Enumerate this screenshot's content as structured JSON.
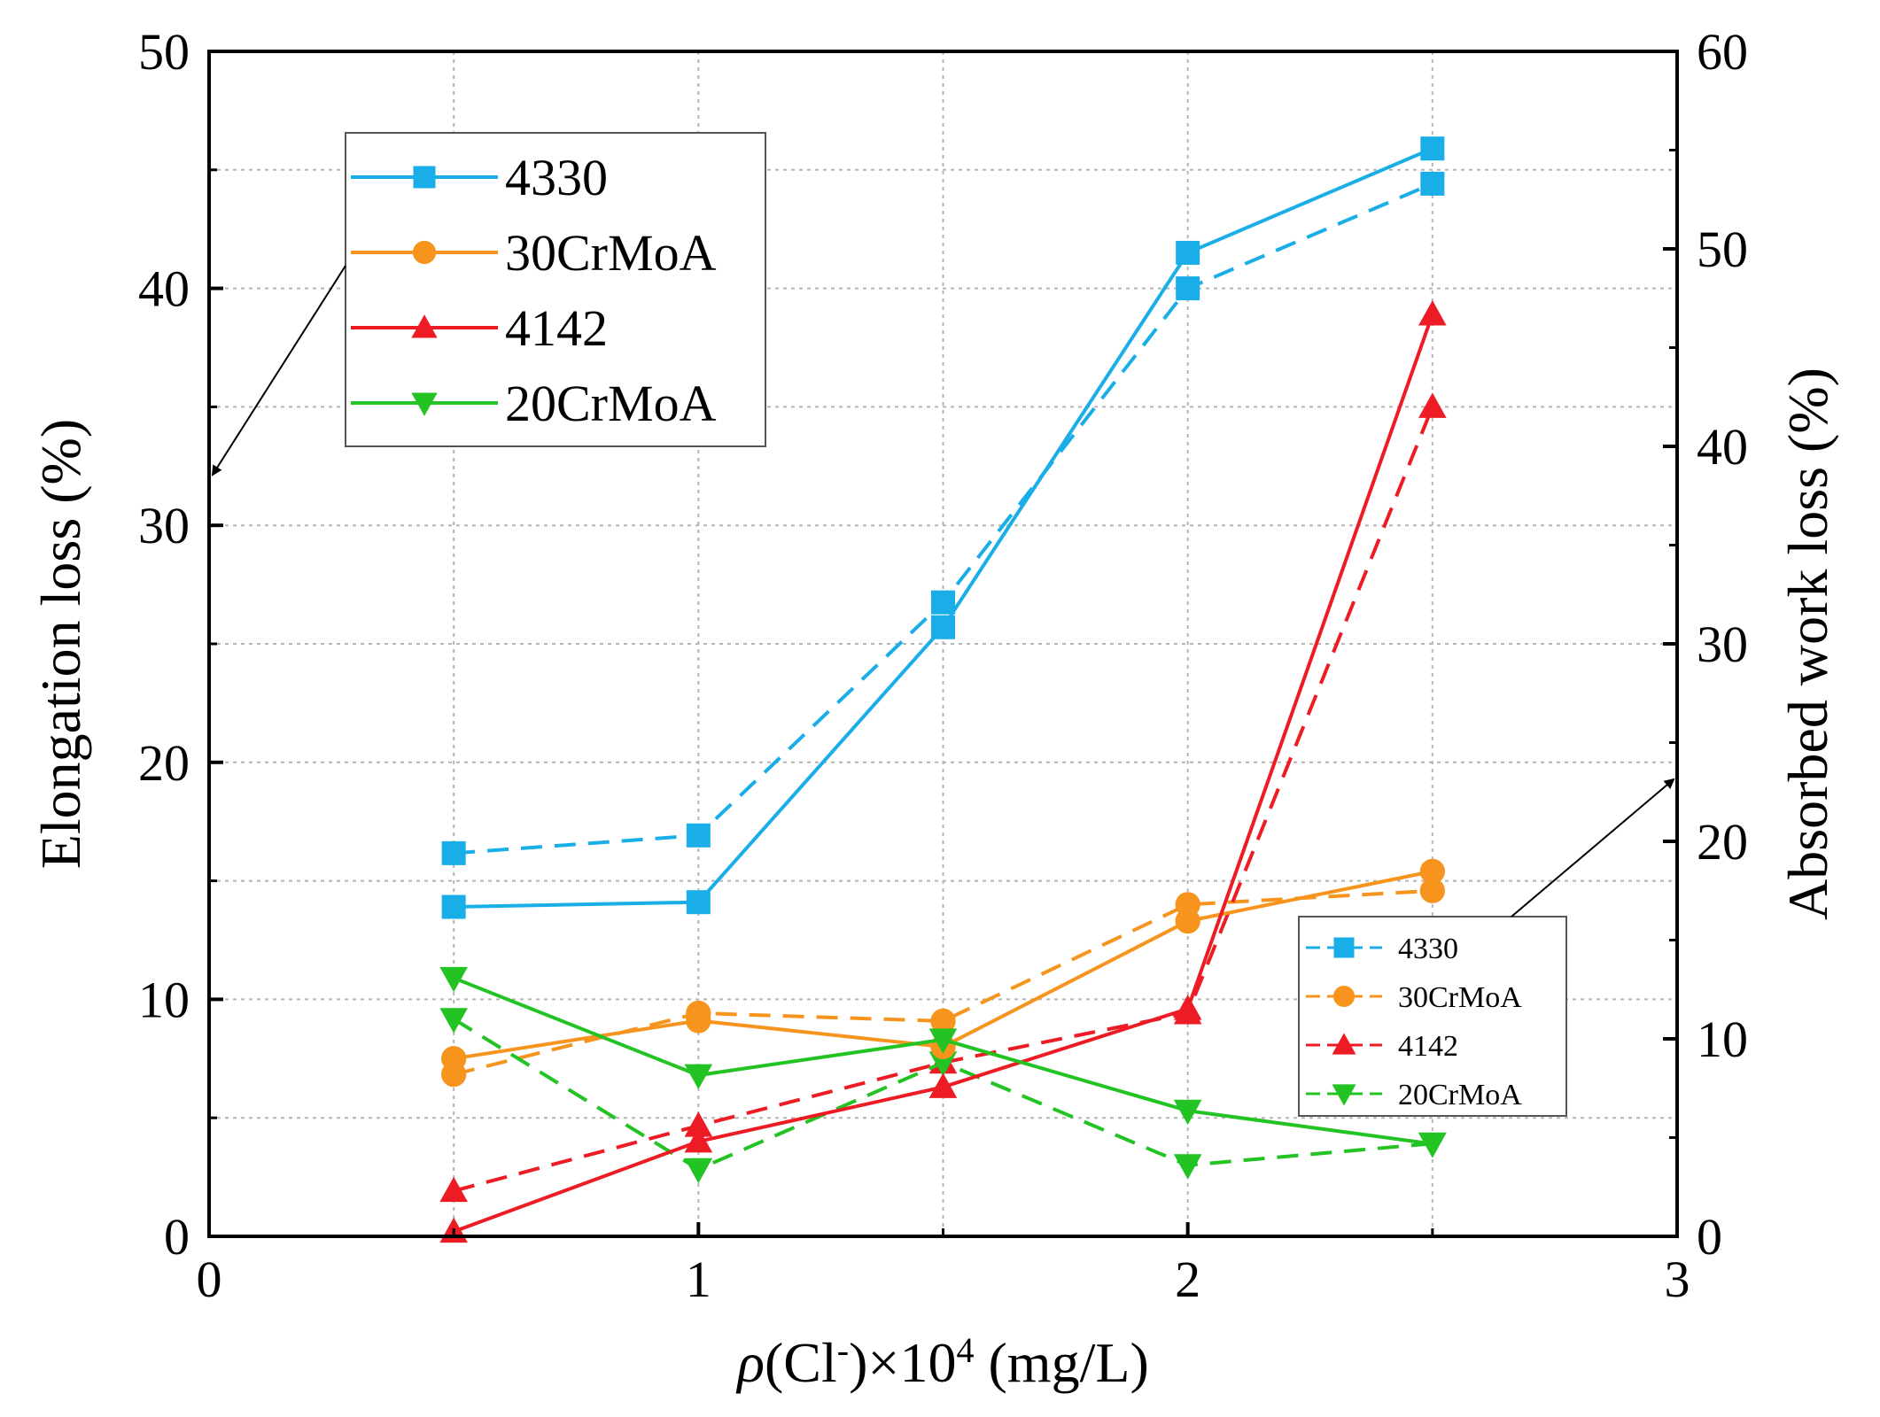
{
  "chart_data": {
    "type": "line",
    "x_axis": {
      "label_prefix": "ρ(Cl",
      "label_superscript_ion": "-",
      "label_mid": ")×10",
      "label_exponent": "4",
      "label_suffix": " (mg/L)",
      "range": [
        0,
        3
      ],
      "ticks": [
        0,
        1,
        2,
        3
      ],
      "tick_labels": [
        "0",
        "1",
        "2",
        "3"
      ]
    },
    "y_left": {
      "label": "Elongation loss (%)",
      "range": [
        0,
        50
      ],
      "ticks": [
        0,
        10,
        20,
        30,
        40,
        50
      ],
      "tick_labels": [
        "0",
        "10",
        "20",
        "30",
        "40",
        "50"
      ]
    },
    "y_right": {
      "label": "Absorbed work loss (%)",
      "range": [
        0,
        60
      ],
      "ticks": [
        0,
        10,
        20,
        30,
        40,
        50,
        60
      ],
      "tick_labels": [
        "0",
        "10",
        "20",
        "30",
        "40",
        "50",
        "60"
      ]
    },
    "x": [
      0.5,
      1,
      1.5,
      2,
      2.5
    ],
    "series": [
      {
        "name": "4330",
        "axis": "left",
        "style": "solid",
        "marker": "square",
        "color": "#1aaee8",
        "values": [
          13.9,
          14.1,
          25.7,
          41.5,
          45.9
        ]
      },
      {
        "name": "30CrMoA",
        "axis": "left",
        "style": "solid",
        "marker": "circle",
        "color": "#f7941d",
        "values": [
          7.5,
          9.1,
          8.0,
          13.3,
          15.4
        ]
      },
      {
        "name": "4142",
        "axis": "left",
        "style": "solid",
        "marker": "triangle-up",
        "color": "#ed1c24",
        "values": [
          0.2,
          4.0,
          6.3,
          9.6,
          38.9
        ]
      },
      {
        "name": "20CrMoA",
        "axis": "left",
        "style": "solid",
        "marker": "triangle-down",
        "color": "#22c322",
        "values": [
          10.9,
          6.8,
          8.3,
          5.3,
          3.9
        ]
      },
      {
        "name": "4330",
        "axis": "right",
        "style": "dashed",
        "marker": "square",
        "color": "#1aaee8",
        "values": [
          19.4,
          20.3,
          32.1,
          48.0,
          53.3
        ]
      },
      {
        "name": "30CrMoA",
        "axis": "right",
        "style": "dashed",
        "marker": "circle",
        "color": "#f7941d",
        "values": [
          8.2,
          11.3,
          10.9,
          16.8,
          17.5
        ]
      },
      {
        "name": "4142",
        "axis": "right",
        "style": "dashed",
        "marker": "triangle-up",
        "color": "#ed1c24",
        "values": [
          2.3,
          5.6,
          8.8,
          11.3,
          42.0
        ]
      },
      {
        "name": "20CrMoA",
        "axis": "right",
        "style": "dashed",
        "marker": "triangle-down",
        "color": "#22c322",
        "values": [
          11.0,
          3.4,
          8.8,
          3.6,
          4.7
        ]
      }
    ],
    "legends": [
      {
        "placement": "top-left",
        "axis": "left",
        "items": [
          "4330",
          "30CrMoA",
          "4142",
          "20CrMoA"
        ]
      },
      {
        "placement": "bottom-right",
        "axis": "right",
        "items": [
          "4330",
          "30CrMoA",
          "4142",
          "20CrMoA"
        ]
      }
    ],
    "grid": true
  }
}
